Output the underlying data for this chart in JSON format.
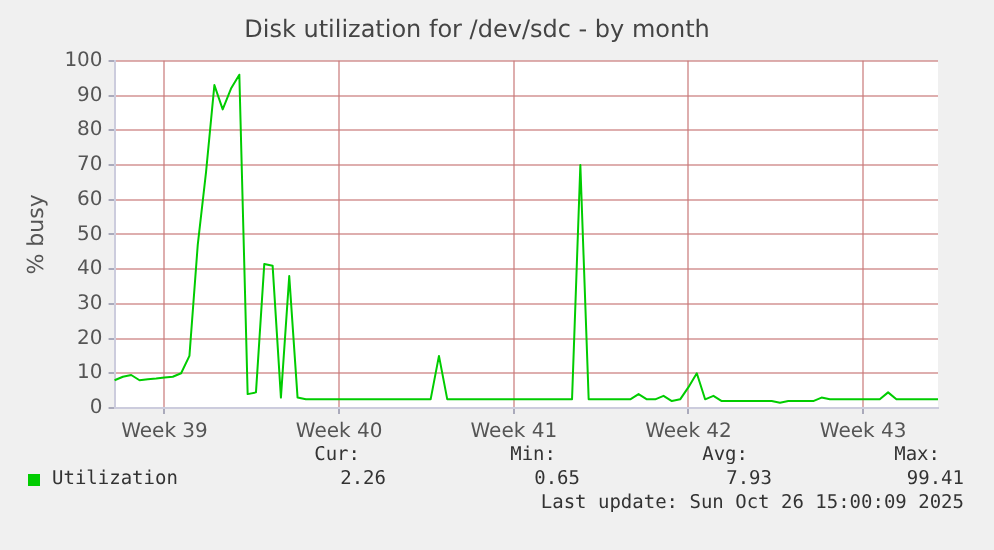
{
  "chart_data": {
    "type": "line",
    "title": "Disk utilization for /dev/sdc - by month",
    "ylabel": "% busy",
    "categories": [
      null,
      null,
      null,
      null,
      null,
      null,
      "Week 39",
      null,
      null,
      null,
      null,
      null,
      null,
      null,
      null,
      null,
      null,
      null,
      null,
      null,
      null,
      null,
      null,
      null,
      null,
      null,
      null,
      "Week 40",
      null,
      null,
      null,
      null,
      null,
      null,
      null,
      null,
      null,
      null,
      null,
      null,
      null,
      null,
      null,
      null,
      null,
      null,
      null,
      null,
      "Week 41",
      null,
      null,
      null,
      null,
      null,
      null,
      null,
      null,
      null,
      null,
      null,
      null,
      null,
      null,
      null,
      null,
      null,
      null,
      null,
      null,
      "Week 42",
      null,
      null,
      null,
      null,
      null,
      null,
      null,
      null,
      null,
      null,
      null,
      null,
      null,
      null,
      null,
      null,
      null,
      null,
      null,
      null,
      "Week 43",
      null,
      null,
      null,
      null,
      null,
      null,
      null,
      null,
      null
    ],
    "ylim": [
      0,
      100
    ],
    "yticks": [
      0,
      10,
      20,
      30,
      40,
      50,
      60,
      70,
      80,
      90,
      100
    ],
    "grid": true,
    "legend": "bottom",
    "marker": "none",
    "line_style": "solid",
    "series": [
      {
        "name": "Utilization",
        "color": "#00cc00",
        "values": [
          8,
          9,
          9.5,
          8,
          8.3,
          8.5,
          8.8,
          9,
          10,
          15,
          47,
          68,
          93,
          86,
          92,
          96,
          4,
          4.5,
          41.5,
          41,
          3,
          38,
          3,
          2.5,
          2.5,
          2.5,
          2.5,
          2.5,
          2.5,
          2.5,
          2.5,
          2.5,
          2.5,
          2.5,
          2.5,
          2.5,
          2.5,
          2.5,
          2.5,
          15,
          2.5,
          2.5,
          2.5,
          2.5,
          2.5,
          2.5,
          2.5,
          2.5,
          2.5,
          2.5,
          2.5,
          2.5,
          2.5,
          2.5,
          2.5,
          2.5,
          70,
          2.5,
          2.5,
          2.5,
          2.5,
          2.5,
          2.5,
          4,
          2.5,
          2.5,
          3.5,
          2,
          2.5,
          6,
          10,
          2.5,
          3.5,
          2,
          2,
          2,
          2,
          2,
          2,
          2,
          1.5,
          2,
          2,
          2,
          2,
          3,
          2.5,
          2.5,
          2.5,
          2.5,
          2.5,
          2.5,
          2.5,
          4.5,
          2.5,
          2.5,
          2.5,
          2.5,
          2.5,
          2.5
        ]
      }
    ],
    "annotations": [
      "Cur:",
      "Min:",
      "Avg:",
      "Max:",
      "2.26",
      "0.65",
      "7.93",
      "99.41",
      "Last update: Sun Oct 26 15:00:09 2025"
    ]
  }
}
